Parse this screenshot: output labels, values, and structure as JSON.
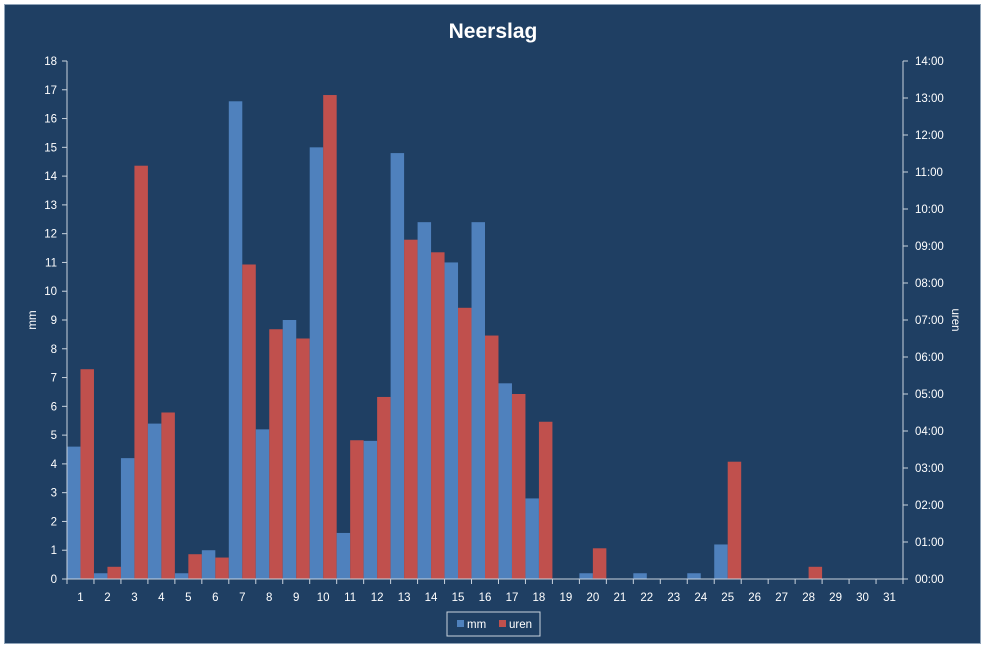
{
  "chart_data": {
    "type": "bar",
    "title": "Neerslag",
    "xlabel": "",
    "ylabel": "mm",
    "y2label": "uren",
    "categories": [
      "1",
      "2",
      "3",
      "4",
      "5",
      "6",
      "7",
      "8",
      "9",
      "10",
      "11",
      "12",
      "13",
      "14",
      "15",
      "16",
      "17",
      "18",
      "19",
      "20",
      "21",
      "22",
      "23",
      "24",
      "25",
      "26",
      "27",
      "28",
      "29",
      "30",
      "31"
    ],
    "ylim": [
      0,
      18
    ],
    "y_ticks": [
      "0",
      "1",
      "2",
      "3",
      "4",
      "5",
      "6",
      "7",
      "8",
      "9",
      "10",
      "11",
      "12",
      "13",
      "14",
      "15",
      "16",
      "17",
      "18"
    ],
    "y2lim_hours": [
      0,
      14
    ],
    "y2_ticks": [
      "00:00",
      "01:00",
      "02:00",
      "03:00",
      "04:00",
      "05:00",
      "06:00",
      "07:00",
      "08:00",
      "09:00",
      "10:00",
      "11:00",
      "12:00",
      "13:00",
      "14:00"
    ],
    "series": [
      {
        "name": "mm",
        "axis": "left",
        "color": "#4f81bd",
        "values": [
          4.6,
          0.2,
          4.2,
          5.4,
          0.2,
          1.0,
          16.6,
          5.2,
          9.0,
          15.0,
          1.6,
          4.8,
          14.8,
          12.4,
          11.0,
          12.4,
          6.8,
          2.8,
          0,
          0.2,
          0,
          0.2,
          0,
          0.2,
          1.2,
          0,
          0,
          0,
          0,
          0,
          0
        ]
      },
      {
        "name": "uren",
        "axis": "right",
        "unit": "hours",
        "color": "#c0504d",
        "values": [
          5.67,
          0.33,
          11.17,
          4.5,
          0.67,
          0.58,
          8.5,
          6.75,
          6.5,
          13.08,
          3.75,
          4.92,
          9.17,
          8.83,
          7.33,
          6.58,
          5.0,
          4.25,
          0,
          0.83,
          0,
          0,
          0,
          0,
          3.17,
          0,
          0,
          0.33,
          0,
          0,
          0
        ]
      }
    ],
    "grid": false,
    "legend": "bottom"
  }
}
